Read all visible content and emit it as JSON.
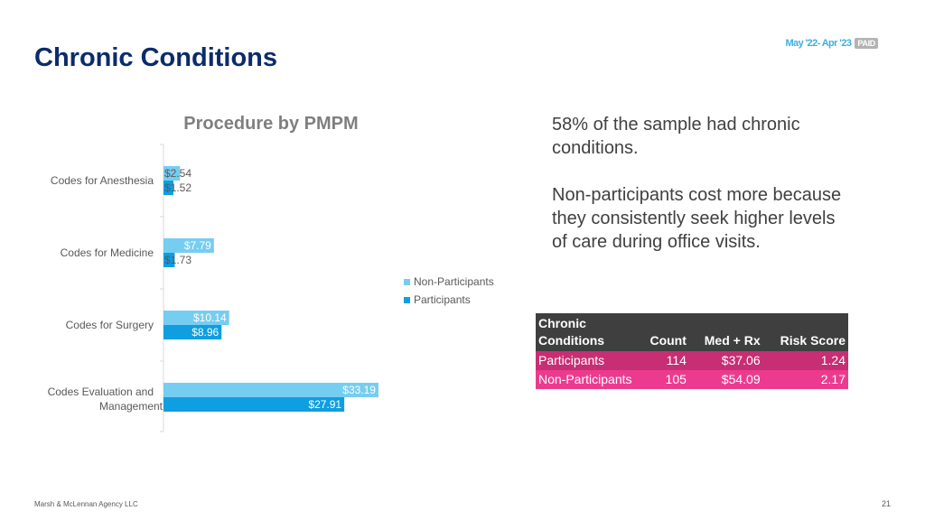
{
  "slide": {
    "title": "Chronic Conditions",
    "period": "May '22- Apr '23",
    "period_badge": "PAID",
    "footer_company": "Marsh & McLennan Agency LLC",
    "page_number": "21"
  },
  "chart_data": {
    "type": "bar",
    "orientation": "horizontal",
    "title": "Procedure by PMPM",
    "categories": [
      "Codes for Anesthesia",
      "Codes for Medicine",
      "Codes for Surgery",
      "Codes Evaluation and Management"
    ],
    "series": [
      {
        "name": "Non-Participants",
        "color": "#76cdf2",
        "values": [
          2.54,
          7.79,
          10.14,
          33.19
        ],
        "labels": [
          "$2.54",
          "$7.79",
          "$10.14",
          "$33.19"
        ]
      },
      {
        "name": "Participants",
        "color": "#0f9ee0",
        "values": [
          1.52,
          1.73,
          8.96,
          27.91
        ],
        "labels": [
          "$1.52",
          "$1.73",
          "$8.96",
          "$27.91"
        ]
      }
    ],
    "xlim": [
      0,
      40
    ],
    "legend_position": "right"
  },
  "text": {
    "paragraph1": "58% of the sample had chronic conditions.",
    "paragraph2": "Non-participants cost more because they consistently seek higher levels of care during office visits."
  },
  "table": {
    "headers": [
      "Chronic Conditions",
      "Count",
      "Med + Rx",
      "Risk Score"
    ],
    "rows": [
      [
        "Participants",
        "114",
        "$37.06",
        "1.24"
      ],
      [
        "Non-Participants",
        "105",
        "$54.09",
        "2.17"
      ]
    ],
    "row_colors": [
      "#c72e74",
      "#ec3b8f"
    ],
    "header_color": "#3f3f3f"
  }
}
